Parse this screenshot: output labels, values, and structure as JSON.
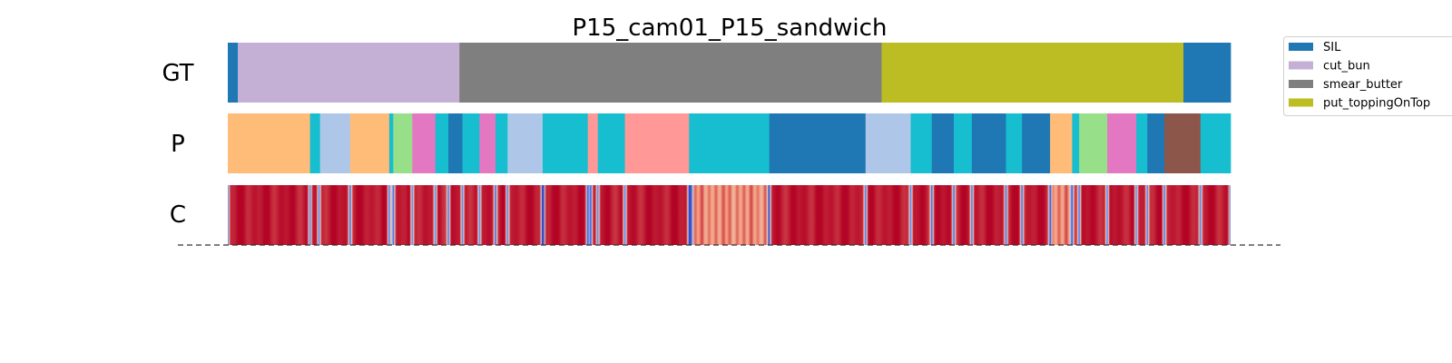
{
  "chart_data": {
    "type": "segmentation",
    "title": "P15_cam01_P15_sandwich",
    "x_range": [
      0,
      1000
    ],
    "rows": [
      {
        "label": "GT",
        "segments": [
          {
            "start": 0,
            "end": 10,
            "color": "#1f77b4"
          },
          {
            "start": 10,
            "end": 231,
            "color": "#c5b0d5"
          },
          {
            "start": 231,
            "end": 652,
            "color": "#7f7f7f"
          },
          {
            "start": 652,
            "end": 953,
            "color": "#bcbd22"
          },
          {
            "start": 953,
            "end": 1000,
            "color": "#1f77b4"
          }
        ]
      },
      {
        "label": "P",
        "segments": [
          {
            "start": 0,
            "end": 82,
            "color": "#ffbb78"
          },
          {
            "start": 82,
            "end": 92,
            "color": "#17becf"
          },
          {
            "start": 92,
            "end": 122,
            "color": "#aec7e8"
          },
          {
            "start": 122,
            "end": 161,
            "color": "#ffbb78"
          },
          {
            "start": 161,
            "end": 165,
            "color": "#17becf"
          },
          {
            "start": 165,
            "end": 184,
            "color": "#98df8a"
          },
          {
            "start": 184,
            "end": 207,
            "color": "#e377c2"
          },
          {
            "start": 207,
            "end": 220,
            "color": "#17becf"
          },
          {
            "start": 220,
            "end": 234,
            "color": "#1f77b4"
          },
          {
            "start": 234,
            "end": 251,
            "color": "#17becf"
          },
          {
            "start": 251,
            "end": 267,
            "color": "#e377c2"
          },
          {
            "start": 267,
            "end": 279,
            "color": "#17becf"
          },
          {
            "start": 279,
            "end": 314,
            "color": "#aec7e8"
          },
          {
            "start": 314,
            "end": 359,
            "color": "#17becf"
          },
          {
            "start": 359,
            "end": 369,
            "color": "#ff9896"
          },
          {
            "start": 369,
            "end": 396,
            "color": "#17becf"
          },
          {
            "start": 396,
            "end": 460,
            "color": "#ff9896"
          },
          {
            "start": 460,
            "end": 540,
            "color": "#17becf"
          },
          {
            "start": 540,
            "end": 636,
            "color": "#1f77b4"
          },
          {
            "start": 636,
            "end": 681,
            "color": "#aec7e8"
          },
          {
            "start": 681,
            "end": 702,
            "color": "#17becf"
          },
          {
            "start": 702,
            "end": 724,
            "color": "#1f77b4"
          },
          {
            "start": 724,
            "end": 742,
            "color": "#17becf"
          },
          {
            "start": 742,
            "end": 776,
            "color": "#1f77b4"
          },
          {
            "start": 776,
            "end": 792,
            "color": "#17becf"
          },
          {
            "start": 792,
            "end": 820,
            "color": "#1f77b4"
          },
          {
            "start": 820,
            "end": 842,
            "color": "#ffbb78"
          },
          {
            "start": 842,
            "end": 849,
            "color": "#17becf"
          },
          {
            "start": 849,
            "end": 877,
            "color": "#98df8a"
          },
          {
            "start": 877,
            "end": 906,
            "color": "#e377c2"
          },
          {
            "start": 906,
            "end": 917,
            "color": "#17becf"
          },
          {
            "start": 917,
            "end": 934,
            "color": "#1f77b4"
          },
          {
            "start": 934,
            "end": 970,
            "color": "#8c564b"
          },
          {
            "start": 970,
            "end": 1000,
            "color": "#17becf"
          }
        ]
      },
      {
        "label": "C",
        "confidence_colormap": "coolwarm",
        "low_confidence_at": [
          0,
          82,
          91,
          122,
          161,
          165,
          184,
          207,
          220,
          234,
          251,
          267,
          279,
          314,
          314.5,
          359,
          362,
          369,
          396,
          460,
          462,
          540,
          636,
          681,
          702,
          724,
          742,
          776,
          792,
          820,
          842,
          849,
          877,
          906,
          917,
          934,
          970,
          1000
        ],
        "soft_regions": [
          [
            463,
            540
          ],
          [
            820,
            842
          ]
        ]
      }
    ],
    "legend": {
      "position": "upper-right",
      "entries": [
        {
          "label": "SIL",
          "color": "#1f77b4"
        },
        {
          "label": "cut_bun",
          "color": "#c5b0d5"
        },
        {
          "label": "smear_butter",
          "color": "#7f7f7f"
        },
        {
          "label": "put_toppingOnTop",
          "color": "#bcbd22"
        }
      ]
    }
  }
}
